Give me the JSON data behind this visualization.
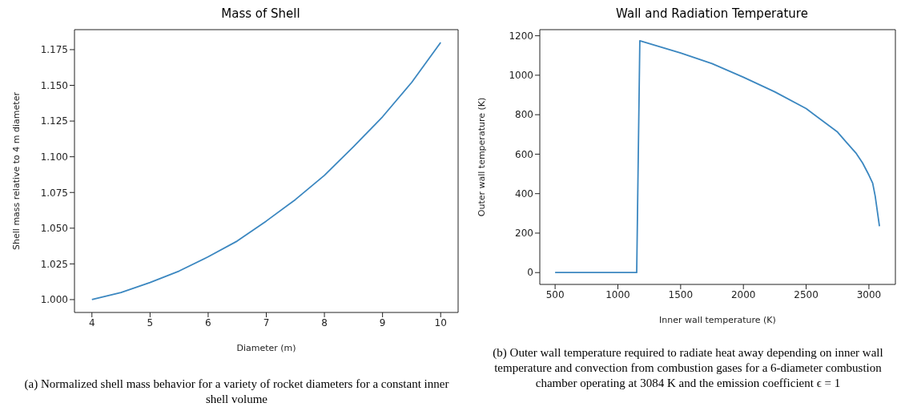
{
  "chart_data": [
    {
      "type": "line",
      "title": "Mass of Shell",
      "xlabel": "Diameter (m)",
      "ylabel": "Shell mass relative to 4 m diameter",
      "color": "#3b87c0",
      "x": [
        4,
        4.5,
        5,
        5.5,
        6,
        6.5,
        7,
        7.5,
        8,
        8.5,
        9,
        9.5,
        10
      ],
      "values": [
        1.0,
        1.005,
        1.012,
        1.02,
        1.03,
        1.041,
        1.055,
        1.07,
        1.087,
        1.107,
        1.128,
        1.152,
        1.18
      ],
      "xlim": [
        3.7,
        10.3
      ],
      "ylim": [
        0.991,
        1.189
      ],
      "xticks": [
        4,
        5,
        6,
        7,
        8,
        9,
        10
      ],
      "yticks": [
        {
          "value": 1,
          "label": "1.000"
        },
        {
          "value": 1.025,
          "label": "1.025"
        },
        {
          "value": 1.05,
          "label": "1.050"
        },
        {
          "value": 1.075,
          "label": "1.075"
        },
        {
          "value": 1.1,
          "label": "1.100"
        },
        {
          "value": 1.125,
          "label": "1.125"
        },
        {
          "value": 1.15,
          "label": "1.150"
        },
        {
          "value": 1.175,
          "label": "1.175"
        }
      ],
      "annotations": [
        "(a) Normalized shell mass behavior for a variety of rocket diameters for a constant inner shell volume"
      ]
    },
    {
      "type": "line",
      "title": "Wall and Radiation Temperature",
      "xlabel": "Inner wall temperature (K)",
      "ylabel": "Outer wall temperature (K)",
      "color": "#3b87c0",
      "x": [
        500,
        1150,
        1175,
        1500,
        1750,
        2000,
        2250,
        2500,
        2750,
        2825,
        2900,
        2950,
        3000,
        3030,
        3050,
        3084
      ],
      "values": [
        0,
        0,
        1175,
        1113,
        1059,
        990,
        916,
        831,
        712,
        657,
        603,
        555,
        494,
        453,
        388,
        235
      ],
      "xlim": [
        378,
        3211
      ],
      "ylim": [
        -60,
        1231
      ],
      "xticks": [
        500,
        1000,
        1500,
        2000,
        2500,
        3000
      ],
      "yticks": [
        0,
        200,
        400,
        600,
        800,
        1000,
        1200
      ],
      "annotations": [
        "(b) Outer wall temperature required to radiate heat away depending on inner wall temperature and convection from combustion gases for a 6-diameter combustion chamber operating at 3084 K and the emission coefficient ϵ = 1"
      ]
    }
  ]
}
